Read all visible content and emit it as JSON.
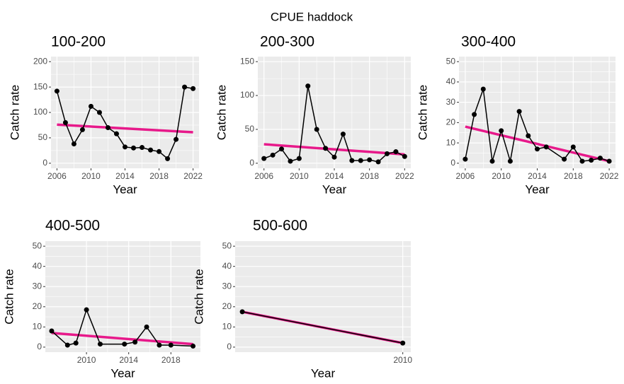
{
  "title": "CPUE haddock",
  "chart_data": [
    {
      "type": "line",
      "title": "100-200",
      "x_label": "Year",
      "y_label": "Catch rate",
      "xlim": [
        2005.3,
        2022.7
      ],
      "xticks": [
        2006,
        2010,
        2014,
        2018,
        2022
      ],
      "ylim": [
        -10,
        210
      ],
      "yticks": [
        0,
        50,
        100,
        150,
        200
      ],
      "grid": true,
      "series": [
        {
          "color": "#e7198a",
          "x": [
            2006,
            2022
          ],
          "values": [
            76,
            61
          ]
        },
        {
          "color": "#000000",
          "markers": true,
          "x": [
            2006,
            2007,
            2008,
            2009,
            2010,
            2011,
            2012,
            2013,
            2014,
            2015,
            2016,
            2017,
            2018,
            2019,
            2020,
            2021,
            2022
          ],
          "values": [
            142,
            80,
            38,
            66,
            112,
            100,
            70,
            58,
            32,
            30,
            31,
            26,
            23,
            9,
            47,
            150,
            147
          ]
        }
      ]
    },
    {
      "type": "line",
      "title": "200-300",
      "x_label": "Year",
      "y_label": "Catch rate",
      "xlim": [
        2005.3,
        2022.7
      ],
      "xticks": [
        2006,
        2010,
        2014,
        2018,
        2022
      ],
      "ylim": [
        -7.5,
        157.5
      ],
      "yticks": [
        0,
        50,
        100,
        150
      ],
      "grid": true,
      "series": [
        {
          "color": "#e7198a",
          "x": [
            2006,
            2022
          ],
          "values": [
            28,
            13
          ]
        },
        {
          "color": "#000000",
          "markers": true,
          "x": [
            2006,
            2007,
            2008,
            2009,
            2010,
            2011,
            2012,
            2013,
            2014,
            2015,
            2016,
            2017,
            2018,
            2019,
            2020,
            2021,
            2022
          ],
          "values": [
            7,
            12,
            21,
            3,
            7,
            114,
            50,
            22,
            9,
            43,
            4,
            4,
            5,
            2,
            14,
            17,
            10
          ]
        }
      ]
    },
    {
      "type": "line",
      "title": "300-400",
      "x_label": "Year",
      "y_label": "Catch rate",
      "xlim": [
        2005.3,
        2022.7
      ],
      "xticks": [
        2006,
        2010,
        2014,
        2018,
        2022
      ],
      "ylim": [
        -2.5,
        52.5
      ],
      "yticks": [
        0,
        10,
        20,
        30,
        40,
        50
      ],
      "grid": true,
      "series": [
        {
          "color": "#e7198a",
          "x": [
            2006,
            2022
          ],
          "values": [
            18,
            1
          ]
        },
        {
          "color": "#000000",
          "markers": true,
          "x": [
            2006,
            2007,
            2008,
            2009,
            2010,
            2011,
            2012,
            2013,
            2014,
            2015,
            2017,
            2018,
            2019,
            2020,
            2021,
            2022
          ],
          "values": [
            2,
            24,
            36.5,
            1,
            16,
            1,
            25.5,
            13.5,
            7,
            8,
            2,
            8,
            1,
            1.5,
            2.5,
            1
          ]
        }
      ]
    },
    {
      "type": "line",
      "title": "400-500",
      "x_label": "Year",
      "y_label": "Catch rate",
      "xlim": [
        2006.1,
        2020.8
      ],
      "xticks": [
        2010,
        2014,
        2018
      ],
      "ylim": [
        -2.5,
        52.5
      ],
      "yticks": [
        0,
        10,
        20,
        30,
        40,
        50
      ],
      "grid": true,
      "series": [
        {
          "color": "#e7198a",
          "x": [
            2006.7,
            2020.1
          ],
          "values": [
            7,
            1.5
          ]
        },
        {
          "color": "#000000",
          "markers": true,
          "x": [
            2006.7,
            2008.2,
            2009,
            2010,
            2011.3,
            2013.6,
            2014.6,
            2015.7,
            2016.9,
            2018,
            2020.1
          ],
          "values": [
            8,
            1,
            2,
            18.5,
            1.5,
            1.5,
            2.5,
            10,
            1,
            1,
            0.5
          ]
        }
      ]
    },
    {
      "type": "line",
      "title": "500-600",
      "x_label": "Year",
      "y_label": "Catch rate",
      "xlim": [
        2000.6,
        2010.45
      ],
      "xticks": [
        2010
      ],
      "ylim": [
        -2.5,
        52.5
      ],
      "yticks": [
        0,
        10,
        20,
        30,
        40,
        50
      ],
      "grid": true,
      "series": [
        {
          "color": "#e7198a",
          "x": [
            2001,
            2010
          ],
          "values": [
            17.5,
            2
          ]
        },
        {
          "color": "#000000",
          "markers": true,
          "x": [
            2001,
            2010
          ],
          "values": [
            17.5,
            2
          ]
        }
      ]
    }
  ]
}
